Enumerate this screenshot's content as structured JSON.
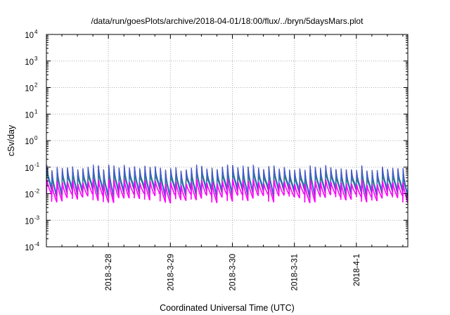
{
  "chart_data": {
    "type": "line",
    "title": "/data/run/goesPlots/archive/2018-04-01/18:00/flux/../bryn/5daysMars.plot",
    "xlabel": "Coordinated Universal Time (UTC)",
    "ylabel": "cSv/day",
    "x_tick_labels": [
      "2018-3-28",
      "2018-3-29",
      "2018-3-30",
      "2018-3-31",
      "2018-4-1"
    ],
    "xlim_days_rel_2018_03_28": [
      -1.0,
      4.83
    ],
    "y_scale": "log",
    "ylim": [
      0.0001,
      10000
    ],
    "y_ticks": [
      {
        "base": "10",
        "exp": "-4"
      },
      {
        "base": "10",
        "exp": "-3"
      },
      {
        "base": "10",
        "exp": "-2"
      },
      {
        "base": "10",
        "exp": "-1"
      },
      {
        "base": "10",
        "exp": "0"
      },
      {
        "base": "10",
        "exp": "1"
      },
      {
        "base": "10",
        "exp": "2"
      },
      {
        "base": "10",
        "exp": "3"
      },
      {
        "base": "10",
        "exp": "4"
      }
    ],
    "grid": true,
    "legend": "none",
    "series_style": {
      "colors": [
        "#e6001f",
        "#8b1f4f",
        "#2a8e4f",
        "#1f8fcf",
        "#3a5ccf",
        "#ff00ff"
      ],
      "pattern": "sawtooth pulses",
      "pulse_period_days": 0.0833,
      "peak_range": [
        0.03,
        0.12
      ],
      "trough_range": [
        0.003,
        0.02
      ]
    }
  }
}
